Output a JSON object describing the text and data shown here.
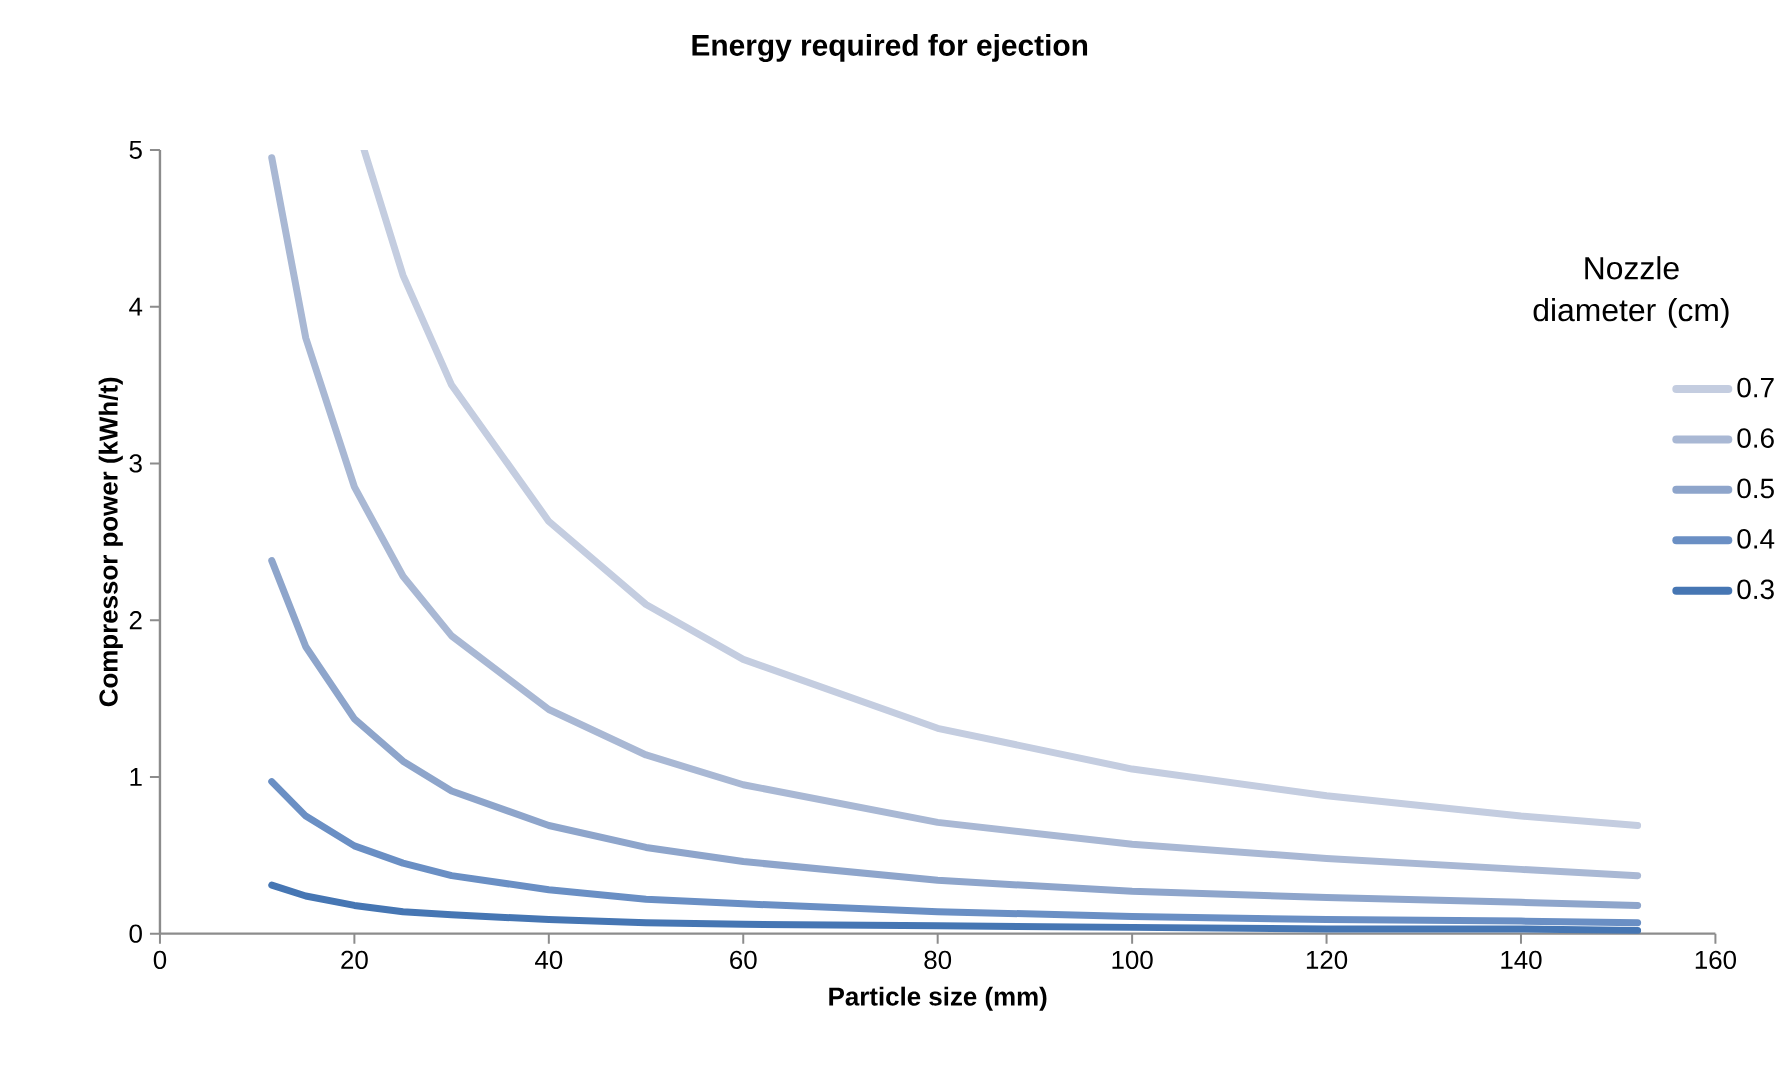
{
  "chart_data": {
    "type": "line",
    "title": "Energy required for ejection",
    "xlabel": "Particle size (mm)",
    "ylabel": "Compressor power (kWh/t)",
    "legend_title": "Nozzle diameter (cm)",
    "xlim": [
      0,
      160
    ],
    "xticks": [
      0,
      20,
      40,
      60,
      80,
      100,
      120,
      140,
      160
    ],
    "ylim": [
      0,
      5
    ],
    "yticks": [
      0,
      1,
      2,
      3,
      4,
      5
    ],
    "grid": false,
    "legend": "top right",
    "marker": "none",
    "line_style": "solid",
    "series": [
      {
        "name": "0.7",
        "color": "#c4cde0",
        "x": [
          21,
          25,
          30,
          40,
          50,
          60,
          80,
          100,
          120,
          140,
          152
        ],
        "values": [
          5.0,
          4.2,
          3.5,
          2.63,
          2.1,
          1.75,
          1.31,
          1.05,
          0.88,
          0.75,
          0.69
        ]
      },
      {
        "name": "0.6",
        "color": "#a9b8d4",
        "x": [
          11.5,
          15,
          20,
          25,
          30,
          40,
          50,
          60,
          80,
          100,
          120,
          140,
          152
        ],
        "values": [
          4.95,
          3.8,
          2.85,
          2.28,
          1.9,
          1.43,
          1.14,
          0.95,
          0.71,
          0.57,
          0.48,
          0.41,
          0.37
        ]
      },
      {
        "name": "0.5",
        "color": "#8ea5cb",
        "x": [
          11.5,
          15,
          20,
          25,
          30,
          40,
          50,
          60,
          80,
          100,
          120,
          140,
          152
        ],
        "values": [
          2.38,
          1.83,
          1.37,
          1.1,
          0.91,
          0.69,
          0.55,
          0.46,
          0.34,
          0.27,
          0.23,
          0.2,
          0.18
        ]
      },
      {
        "name": "0.4",
        "color": "#6a8fc4",
        "x": [
          11.5,
          15,
          20,
          25,
          30,
          40,
          50,
          60,
          80,
          100,
          120,
          140,
          152
        ],
        "values": [
          0.97,
          0.75,
          0.56,
          0.45,
          0.37,
          0.28,
          0.22,
          0.19,
          0.14,
          0.11,
          0.09,
          0.08,
          0.07
        ]
      },
      {
        "name": "0.3",
        "color": "#4676b3",
        "x": [
          11.5,
          15,
          20,
          25,
          30,
          40,
          50,
          60,
          80,
          100,
          120,
          140,
          152
        ],
        "values": [
          0.31,
          0.24,
          0.18,
          0.14,
          0.12,
          0.09,
          0.07,
          0.06,
          0.05,
          0.04,
          0.03,
          0.03,
          0.02
        ]
      }
    ]
  }
}
